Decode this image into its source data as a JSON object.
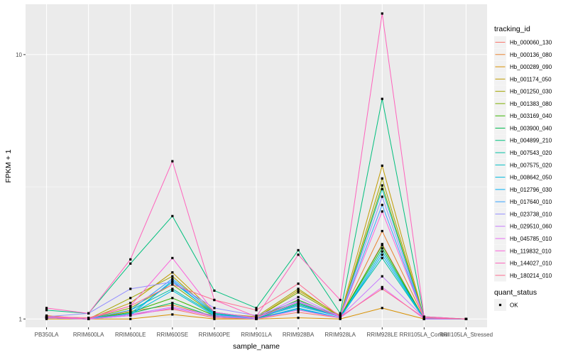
{
  "chart_data": {
    "type": "line",
    "xlabel": "sample_name",
    "ylabel": "FPKM + 1",
    "y_scale": "log10",
    "ylim": [
      0.93,
      15.5
    ],
    "y_ticks": [
      1,
      10
    ],
    "y_tick_labels": [
      "1",
      "10"
    ],
    "grid": true,
    "legend_position": "right",
    "categories": [
      "PB350LA",
      "RRIM600LA",
      "RRIM600LE",
      "RRIM600SE",
      "RRIM600PE",
      "RRIM901LA",
      "RRIM928BA",
      "RRIM928LA",
      "RRIM928LE",
      "RRII105LA_Control",
      "RRII105LA_Stressed"
    ],
    "legend": {
      "title": "tracking_id",
      "shape_title": "quant_status",
      "shape_entries": [
        "OK"
      ]
    },
    "series": [
      {
        "name": "Hb_000060_130",
        "color": "#F8766D",
        "values": [
          1.01,
          1.0,
          1.04,
          1.09,
          1.01,
          1.0,
          1.06,
          1.01,
          1.92,
          1.0,
          1.0
        ]
      },
      {
        "name": "Hb_000136_080",
        "color": "#EA8331",
        "values": [
          1.03,
          1.0,
          1.07,
          1.13,
          1.02,
          1.01,
          1.09,
          1.01,
          2.15,
          1.01,
          1.0
        ]
      },
      {
        "name": "Hb_000289_090",
        "color": "#D89000",
        "values": [
          1.0,
          1.0,
          1.0,
          1.04,
          1.0,
          1.0,
          1.01,
          1.0,
          1.1,
          1.0,
          1.0
        ]
      },
      {
        "name": "Hb_001174_050",
        "color": "#C09B00",
        "values": [
          1.02,
          1.0,
          1.15,
          1.5,
          1.06,
          1.01,
          1.28,
          1.03,
          3.8,
          1.01,
          1.0
        ]
      },
      {
        "name": "Hb_001250_030",
        "color": "#A3A500",
        "values": [
          1.01,
          1.0,
          1.2,
          1.45,
          1.05,
          1.02,
          1.3,
          1.02,
          3.4,
          1.01,
          1.0
        ]
      },
      {
        "name": "Hb_001383_080",
        "color": "#7CAE00",
        "values": [
          1.02,
          1.0,
          1.1,
          1.35,
          1.04,
          1.01,
          1.26,
          1.02,
          3.2,
          1.01,
          1.0
        ]
      },
      {
        "name": "Hb_003169_040",
        "color": "#39B600",
        "values": [
          1.01,
          1.0,
          1.06,
          1.2,
          1.03,
          1.01,
          1.18,
          1.02,
          1.9,
          1.0,
          1.0
        ]
      },
      {
        "name": "Hb_003900_040",
        "color": "#00BB4E",
        "values": [
          1.01,
          1.0,
          1.05,
          1.15,
          1.02,
          1.0,
          1.14,
          1.02,
          1.85,
          1.0,
          1.0
        ]
      },
      {
        "name": "Hb_004899_210",
        "color": "#00BF7D",
        "values": [
          1.08,
          1.05,
          1.62,
          2.45,
          1.28,
          1.1,
          1.82,
          1.05,
          6.8,
          1.02,
          1.0
        ]
      },
      {
        "name": "Hb_007543_020",
        "color": "#00C1A3",
        "values": [
          1.02,
          1.0,
          1.08,
          1.3,
          1.04,
          1.01,
          1.15,
          1.02,
          1.7,
          1.0,
          1.0
        ]
      },
      {
        "name": "Hb_007575_020",
        "color": "#00BFC4",
        "values": [
          1.01,
          1.0,
          1.05,
          1.38,
          1.05,
          1.01,
          1.12,
          1.02,
          3.1,
          1.01,
          1.0
        ]
      },
      {
        "name": "Hb_008642_050",
        "color": "#00BAE0",
        "values": [
          1.02,
          1.0,
          1.04,
          1.28,
          1.03,
          1.0,
          1.09,
          1.01,
          1.8,
          1.0,
          1.0
        ]
      },
      {
        "name": "Hb_012796_030",
        "color": "#00B0F6",
        "values": [
          1.01,
          1.0,
          1.03,
          1.4,
          1.04,
          1.0,
          1.1,
          1.01,
          1.75,
          1.0,
          1.0
        ]
      },
      {
        "name": "Hb_017640_010",
        "color": "#35A2FF",
        "values": [
          1.01,
          1.0,
          1.08,
          1.42,
          1.06,
          1.01,
          1.13,
          1.02,
          2.7,
          1.01,
          1.0
        ]
      },
      {
        "name": "Hb_023738_010",
        "color": "#9590FF",
        "values": [
          1.02,
          1.05,
          1.3,
          1.38,
          1.1,
          1.03,
          1.17,
          1.03,
          2.9,
          1.01,
          1.0
        ]
      },
      {
        "name": "Hb_029510_060",
        "color": "#C77CFF",
        "values": [
          1.01,
          1.0,
          1.04,
          1.11,
          1.03,
          1.01,
          1.21,
          1.02,
          1.45,
          1.01,
          1.0
        ]
      },
      {
        "name": "Hb_045785_010",
        "color": "#E76BF3",
        "values": [
          1.01,
          1.0,
          1.03,
          1.1,
          1.02,
          1.0,
          1.08,
          1.01,
          1.32,
          1.0,
          1.0
        ]
      },
      {
        "name": "Hb_119832_010",
        "color": "#FA62DB",
        "values": [
          1.02,
          1.0,
          1.12,
          1.7,
          1.06,
          1.01,
          1.16,
          1.02,
          2.55,
          1.01,
          1.0
        ]
      },
      {
        "name": "Hb_144027_010",
        "color": "#FF62BC",
        "values": [
          1.1,
          1.05,
          1.68,
          3.95,
          1.18,
          1.02,
          1.75,
          1.18,
          14.3,
          1.02,
          1.0
        ]
      },
      {
        "name": "Hb_180214_010",
        "color": "#FF6C91",
        "values": [
          1.02,
          1.01,
          1.12,
          1.35,
          1.18,
          1.08,
          1.36,
          1.02,
          1.3,
          1.01,
          1.0
        ]
      }
    ]
  }
}
